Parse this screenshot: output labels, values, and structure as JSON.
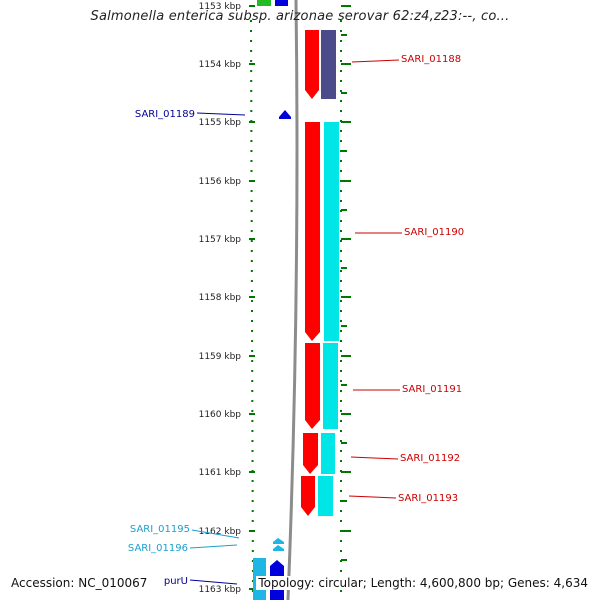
{
  "title": "Salmonella enterica subsp. arizonae serovar 62:z4,z23:--, co...",
  "footer": {
    "accession": "Accession: NC_010067",
    "info": "Topology: circular; Length: 4,600,800 bp; Genes: 4,634"
  },
  "colors": {
    "red": "#ff0000",
    "cyan": "#00e5e5",
    "purple": "#4b4a8a",
    "blue": "#0000dd",
    "lightblue": "#1fb6e6",
    "green_tick": "#007700",
    "backbone": "#8c8c8c",
    "label_red": "#cc0000",
    "label_blue": "#000099",
    "label_lightblue": "#1a9fd0"
  },
  "ticks": [
    {
      "label": "1153 kbp"
    },
    {
      "label": "1154 kbp"
    },
    {
      "label": "1155 kbp"
    },
    {
      "label": "1156 kbp"
    },
    {
      "label": "1157 kbp"
    },
    {
      "label": "1158 kbp"
    },
    {
      "label": "1159 kbp"
    },
    {
      "label": "1160 kbp"
    },
    {
      "label": "1161 kbp"
    },
    {
      "label": "1162 kbp"
    },
    {
      "label": "1163 kbp"
    }
  ],
  "gene_labels": [
    {
      "text": "SARI_01188",
      "color": "label_red"
    },
    {
      "text": "SARI_01189",
      "color": "label_blue"
    },
    {
      "text": "SARI_01190",
      "color": "label_red"
    },
    {
      "text": "SARI_01191",
      "color": "label_red"
    },
    {
      "text": "SARI_01192",
      "color": "label_red"
    },
    {
      "text": "SARI_01193",
      "color": "label_red"
    },
    {
      "text": "SARI_01195",
      "color": "label_lightblue"
    },
    {
      "text": "SARI_01196",
      "color": "label_lightblue"
    },
    {
      "text": "purU",
      "color": "label_blue"
    }
  ]
}
